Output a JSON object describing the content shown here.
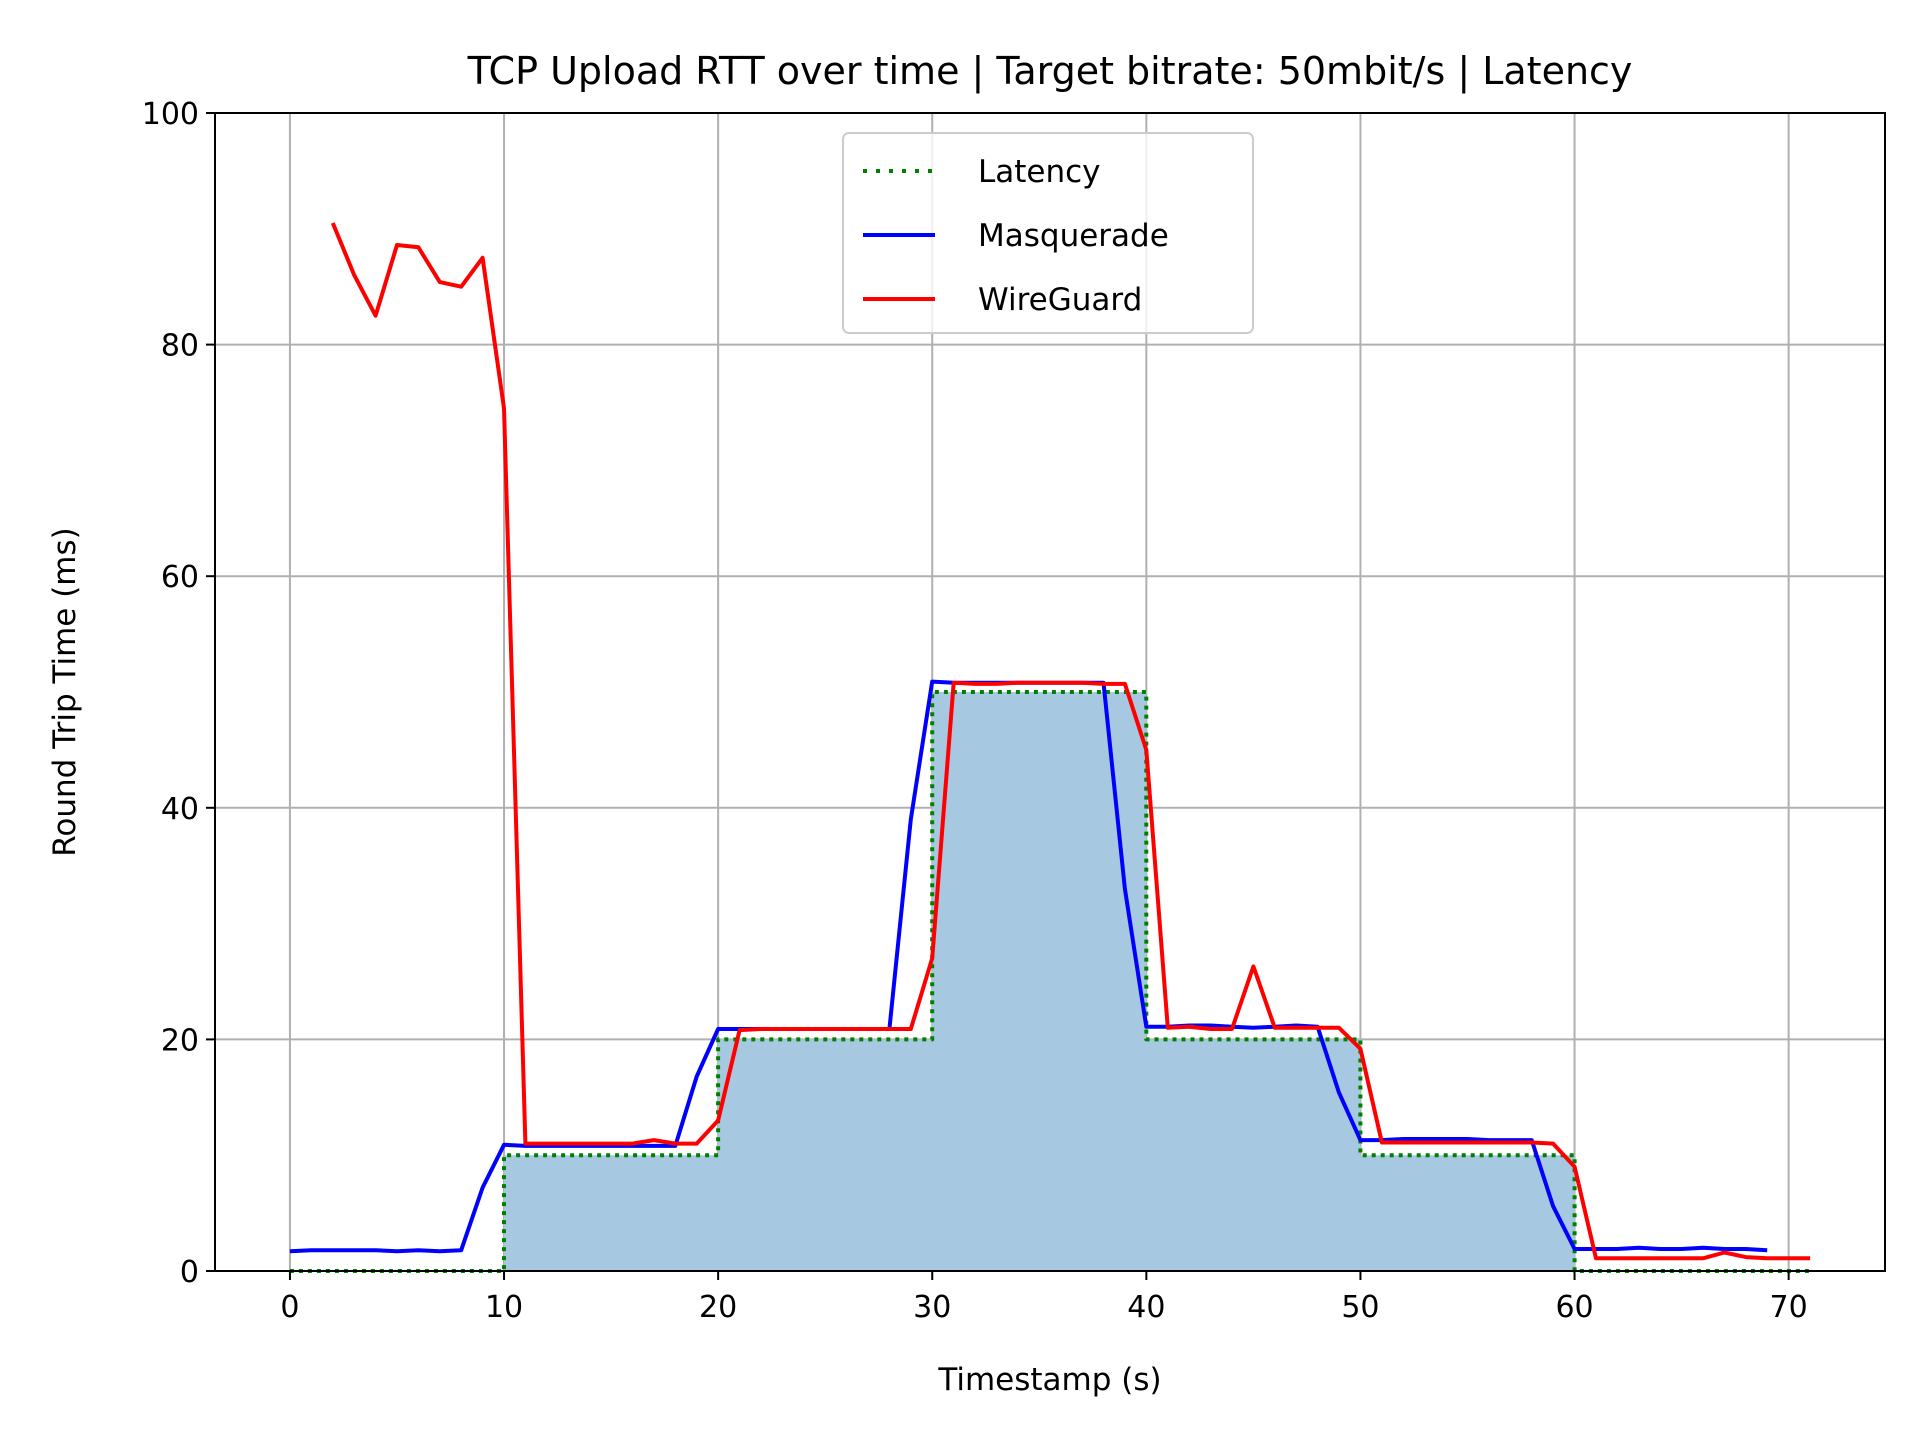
{
  "chart_data": {
    "type": "line",
    "title": "TCP Upload RTT over time | Target bitrate: 50mbit/s | Latency",
    "xlabel": "Timestamp (s)",
    "ylabel": "Round Trip Time (ms)",
    "xlim": [
      -3.5,
      74.5
    ],
    "ylim": [
      0,
      100
    ],
    "xticks": [
      0,
      10,
      20,
      30,
      40,
      50,
      60,
      70
    ],
    "yticks": [
      0,
      20,
      40,
      60,
      80,
      100
    ],
    "xtick_labels": [
      "0",
      "10",
      "20",
      "30",
      "40",
      "50",
      "60",
      "70"
    ],
    "ytick_labels": [
      "0",
      "20",
      "40",
      "60",
      "80",
      "100"
    ],
    "grid": true,
    "legend_position": "upper center",
    "legend": [
      "Latency",
      "Masquerade",
      "WireGuard"
    ],
    "series": [
      {
        "name": "Latency",
        "style": "dotted-step",
        "color": "#008000",
        "fill": "#a6c8e0",
        "points": [
          [
            0,
            0
          ],
          [
            10,
            0
          ],
          [
            10,
            10
          ],
          [
            20,
            10
          ],
          [
            20,
            20
          ],
          [
            30,
            20
          ],
          [
            30,
            50
          ],
          [
            40,
            50
          ],
          [
            40,
            20
          ],
          [
            50,
            20
          ],
          [
            50,
            10
          ],
          [
            60,
            10
          ],
          [
            60,
            0
          ],
          [
            71,
            0
          ]
        ]
      },
      {
        "name": "Masquerade",
        "style": "solid",
        "color": "#0000ff",
        "x": [
          0,
          1,
          2,
          3,
          4,
          5,
          6,
          7,
          8,
          9,
          10,
          11,
          12,
          13,
          14,
          15,
          16,
          17,
          18,
          19,
          20,
          21,
          22,
          23,
          24,
          25,
          26,
          27,
          28,
          29,
          30,
          31,
          32,
          33,
          34,
          35,
          36,
          37,
          38,
          39,
          40,
          41,
          42,
          43,
          44,
          45,
          46,
          47,
          48,
          49,
          50,
          51,
          52,
          53,
          54,
          55,
          56,
          57,
          58,
          59,
          60,
          61,
          62,
          63,
          64,
          65,
          66,
          67,
          68,
          69
        ],
        "y": [
          1.7,
          1.8,
          1.8,
          1.8,
          1.8,
          1.7,
          1.8,
          1.7,
          1.8,
          7.2,
          10.9,
          10.8,
          10.8,
          10.8,
          10.8,
          10.8,
          10.8,
          10.8,
          10.8,
          16.8,
          20.9,
          20.9,
          20.9,
          20.9,
          20.9,
          20.9,
          20.9,
          20.9,
          20.9,
          39.0,
          50.9,
          50.8,
          50.8,
          50.8,
          50.8,
          50.8,
          50.8,
          50.8,
          50.8,
          33.0,
          21.1,
          21.1,
          21.2,
          21.2,
          21.1,
          21.0,
          21.1,
          21.2,
          21.1,
          15.4,
          11.3,
          11.3,
          11.4,
          11.4,
          11.4,
          11.4,
          11.3,
          11.3,
          11.3,
          5.6,
          1.9,
          1.9,
          1.9,
          2.0,
          1.9,
          1.9,
          2.0,
          1.9,
          1.9,
          1.8
        ]
      },
      {
        "name": "WireGuard",
        "style": "solid",
        "color": "#ff0000",
        "x": [
          2,
          3,
          4,
          5,
          6,
          7,
          8,
          9,
          10,
          11,
          12,
          13,
          14,
          15,
          16,
          17,
          18,
          19,
          20,
          21,
          22,
          23,
          24,
          25,
          26,
          27,
          28,
          29,
          30,
          31,
          32,
          33,
          34,
          35,
          36,
          37,
          38,
          39,
          40,
          41,
          42,
          43,
          44,
          45,
          46,
          47,
          48,
          49,
          50,
          51,
          52,
          53,
          54,
          55,
          56,
          57,
          58,
          59,
          60,
          61,
          62,
          63,
          64,
          65,
          66,
          67,
          68,
          69,
          70,
          71
        ],
        "y": [
          90.5,
          86.0,
          82.5,
          88.6,
          88.4,
          85.4,
          85.0,
          87.5,
          74.5,
          11.0,
          11.0,
          11.0,
          11.0,
          11.0,
          11.0,
          11.3,
          11.0,
          11.0,
          13.0,
          20.8,
          20.9,
          20.9,
          20.9,
          20.9,
          20.9,
          20.9,
          20.9,
          20.9,
          27.0,
          50.8,
          50.7,
          50.7,
          50.8,
          50.8,
          50.8,
          50.8,
          50.7,
          50.7,
          45.0,
          21.0,
          21.1,
          20.9,
          20.9,
          26.3,
          21.0,
          21.0,
          21.0,
          21.0,
          19.2,
          11.1,
          11.1,
          11.1,
          11.1,
          11.1,
          11.1,
          11.1,
          11.1,
          11.0,
          9.0,
          1.1,
          1.1,
          1.1,
          1.1,
          1.1,
          1.1,
          1.6,
          1.2,
          1.1,
          1.1,
          1.1
        ]
      }
    ]
  }
}
